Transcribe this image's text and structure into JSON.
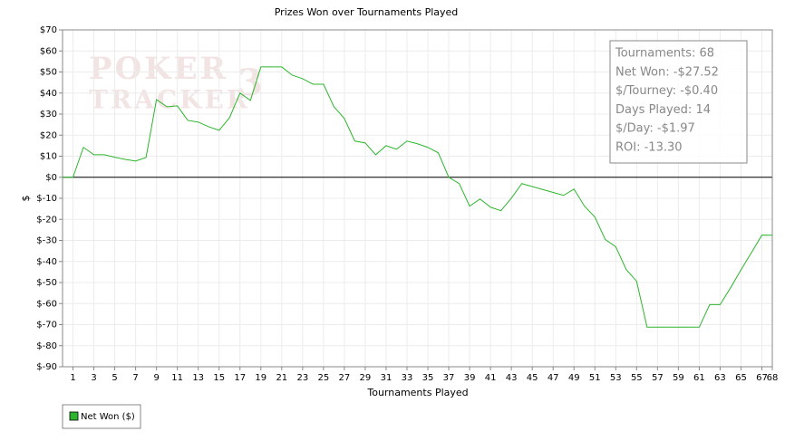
{
  "chart_data": {
    "type": "line",
    "title": "Prizes Won over Tournaments Played",
    "x_label": "Tournaments Played",
    "y_label": "$",
    "watermark": [
      "POKER",
      "TRACKER",
      "3"
    ],
    "info_box": [
      "Tournaments: 68",
      "Net Won: -$27.52",
      "$/Tourney: -$0.40",
      "Days Played: 14",
      "$/Day: -$1.97",
      "ROI: -13.30"
    ],
    "legend": "bottom-left",
    "grid": true,
    "xlim": [
      0,
      68
    ],
    "ylim": [
      -90,
      70
    ],
    "xticks": [
      1,
      3,
      5,
      7,
      9,
      11,
      13,
      15,
      17,
      19,
      21,
      23,
      25,
      27,
      29,
      31,
      33,
      35,
      37,
      39,
      41,
      43,
      45,
      47,
      49,
      51,
      53,
      55,
      57,
      59,
      61,
      63,
      65,
      67,
      68
    ],
    "yticks": [
      {
        "value": 70,
        "label": "$70"
      },
      {
        "value": 60,
        "label": "$60"
      },
      {
        "value": 50,
        "label": "$50"
      },
      {
        "value": 40,
        "label": "$40"
      },
      {
        "value": 30,
        "label": "$30"
      },
      {
        "value": 20,
        "label": "$20"
      },
      {
        "value": 10,
        "label": "$10"
      },
      {
        "value": 0,
        "label": "$0"
      },
      {
        "value": -10,
        "label": "$-10"
      },
      {
        "value": -20,
        "label": "$-20"
      },
      {
        "value": -30,
        "label": "$-30"
      },
      {
        "value": -40,
        "label": "$-40"
      },
      {
        "value": -50,
        "label": "$-50"
      },
      {
        "value": -60,
        "label": "$-60"
      },
      {
        "value": -70,
        "label": "$-70"
      },
      {
        "value": -80,
        "label": "$-80"
      },
      {
        "value": -90,
        "label": "$-90"
      }
    ],
    "x": [
      0,
      1,
      2,
      3,
      4,
      5,
      6,
      7,
      8,
      9,
      10,
      11,
      12,
      13,
      14,
      15,
      16,
      17,
      18,
      19,
      20,
      21,
      22,
      23,
      24,
      25,
      26,
      27,
      28,
      29,
      30,
      31,
      32,
      33,
      34,
      35,
      36,
      37,
      38,
      39,
      40,
      41,
      42,
      43,
      44,
      45,
      46,
      47,
      48,
      49,
      50,
      51,
      52,
      53,
      54,
      55,
      56,
      57,
      58,
      59,
      60,
      61,
      62,
      63,
      64,
      65,
      66,
      67,
      68
    ],
    "series": [
      {
        "name": "Net Won ($)",
        "color": "#2db52d",
        "values": [
          0,
          0,
          14.2,
          10.7,
          10.7,
          9.5,
          8.5,
          7.7,
          9.4,
          36.9,
          33.5,
          33.9,
          27,
          26.2,
          24,
          22.3,
          28.3,
          40,
          36.5,
          52.4,
          52.4,
          52.4,
          48.5,
          46.8,
          44.2,
          44.2,
          33.5,
          27.9,
          17.2,
          16.3,
          10.7,
          15,
          13.3,
          17.2,
          15.9,
          14.2,
          11.6,
          0,
          -3,
          -13.7,
          -10.3,
          -14.2,
          -15.9,
          -9.9,
          -3,
          -4.4,
          -5.8,
          -7.2,
          -8.6,
          -5.6,
          -13.7,
          -18.9,
          -29.6,
          -33,
          -43.8,
          -49.4,
          -71.2,
          -71.2,
          -71.2,
          -71.2,
          -71.2,
          -71.2,
          -60.5,
          -60.5,
          -52.5,
          -44,
          -35.8,
          -27.5,
          -27.52
        ]
      }
    ]
  }
}
